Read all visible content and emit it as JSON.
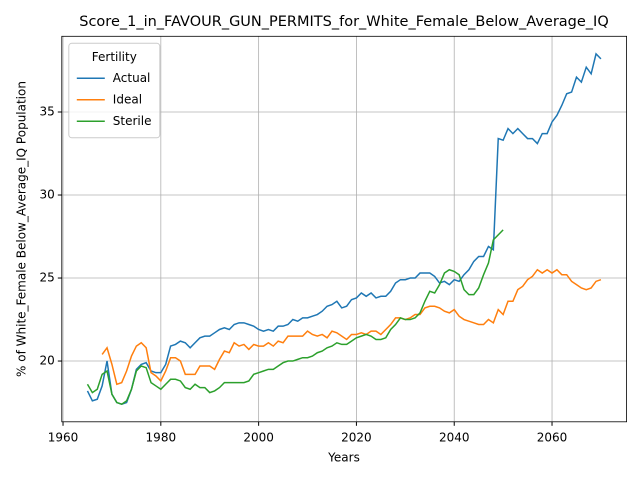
{
  "chart_data": {
    "type": "line",
    "title": "Score_1_in_FAVOUR_GUN_PERMITS_for_White_Female_Below_Average_IQ",
    "x_label": "Years",
    "y_label": "% of White_Female Below_Average_IQ Population",
    "legend_title": "Fertility",
    "legend_position": "upper left",
    "grid": true,
    "x": [
      1965,
      1966,
      1967,
      1968,
      1969,
      1970,
      1971,
      1972,
      1973,
      1974,
      1975,
      1976,
      1977,
      1978,
      1979,
      1980,
      1981,
      1982,
      1983,
      1984,
      1985,
      1986,
      1987,
      1988,
      1989,
      1990,
      1991,
      1992,
      1993,
      1994,
      1995,
      1996,
      1997,
      1998,
      1999,
      2000,
      2001,
      2002,
      2003,
      2004,
      2005,
      2006,
      2007,
      2008,
      2009,
      2010,
      2011,
      2012,
      2013,
      2014,
      2015,
      2016,
      2017,
      2018,
      2019,
      2020,
      2021,
      2022,
      2023,
      2024,
      2025,
      2026,
      2027,
      2028,
      2029,
      2030,
      2031,
      2032,
      2033,
      2034,
      2035,
      2036,
      2037,
      2038,
      2039,
      2040,
      2041,
      2042,
      2043,
      2044,
      2045,
      2046,
      2047,
      2048,
      2049,
      2050,
      2051,
      2052,
      2053,
      2054,
      2055,
      2056,
      2057,
      2058,
      2059,
      2060,
      2061,
      2062,
      2063,
      2064,
      2065,
      2066,
      2067,
      2068,
      2069,
      2070
    ],
    "series": [
      {
        "name": "Actual",
        "color": "#1f77b4",
        "values": [
          18.2,
          17.6,
          17.7,
          18.5,
          20.0,
          18.0,
          17.5,
          17.4,
          17.5,
          18.3,
          19.5,
          19.8,
          19.9,
          19.4,
          19.3,
          19.3,
          19.8,
          20.9,
          21.0,
          21.2,
          21.1,
          20.8,
          21.1,
          21.4,
          21.5,
          21.5,
          21.7,
          21.9,
          22.0,
          21.9,
          22.2,
          22.3,
          22.3,
          22.2,
          22.1,
          21.9,
          21.8,
          21.9,
          21.8,
          22.1,
          22.1,
          22.2,
          22.5,
          22.4,
          22.6,
          22.6,
          22.7,
          22.8,
          23.0,
          23.3,
          23.4,
          23.6,
          23.2,
          23.3,
          23.7,
          23.8,
          24.1,
          23.9,
          24.1,
          23.8,
          23.9,
          23.9,
          24.2,
          24.7,
          24.9,
          24.9,
          25.0,
          25.0,
          25.3,
          25.3,
          25.3,
          25.1,
          24.7,
          24.8,
          24.6,
          24.9,
          24.8,
          25.2,
          25.5,
          26.0,
          26.3,
          26.3,
          26.9,
          26.7,
          33.4,
          33.3,
          34.0,
          33.7,
          34.0,
          33.7,
          33.4,
          33.4,
          33.1,
          33.7,
          33.7,
          34.4,
          34.8,
          35.4,
          36.1,
          36.2,
          37.1,
          36.8,
          37.7,
          37.3,
          38.5,
          38.2
        ]
      },
      {
        "name": "Ideal",
        "color": "#ff7f0e",
        "values": [
          null,
          null,
          null,
          20.4,
          20.8,
          19.8,
          18.6,
          18.7,
          19.4,
          20.3,
          20.9,
          21.1,
          20.8,
          19.3,
          19.1,
          18.8,
          19.4,
          20.2,
          20.2,
          20.0,
          19.2,
          19.2,
          19.2,
          19.7,
          19.7,
          19.7,
          19.5,
          20.1,
          20.6,
          20.5,
          21.1,
          20.9,
          21.0,
          20.7,
          21.0,
          20.9,
          20.9,
          21.1,
          20.9,
          21.2,
          21.1,
          21.5,
          21.5,
          21.5,
          21.5,
          21.8,
          21.6,
          21.5,
          21.6,
          21.4,
          21.8,
          21.7,
          21.5,
          21.3,
          21.6,
          21.6,
          21.7,
          21.6,
          21.8,
          21.8,
          21.6,
          21.9,
          22.2,
          22.6,
          22.6,
          22.5,
          22.6,
          22.8,
          22.8,
          23.2,
          23.3,
          23.3,
          23.2,
          23.0,
          22.9,
          23.1,
          22.7,
          22.5,
          22.4,
          22.3,
          22.2,
          22.2,
          22.5,
          22.3,
          23.1,
          22.8,
          23.6,
          23.6,
          24.3,
          24.5,
          24.9,
          25.1,
          25.5,
          25.3,
          25.5,
          25.3,
          25.5,
          25.2,
          25.2,
          24.8,
          24.6,
          24.4,
          24.3,
          24.4,
          24.8,
          24.9
        ]
      },
      {
        "name": "Sterile",
        "color": "#2ca02c",
        "values": [
          18.6,
          18.1,
          18.3,
          19.2,
          19.4,
          18.0,
          17.5,
          17.4,
          17.6,
          18.3,
          19.4,
          19.7,
          19.6,
          18.7,
          18.5,
          18.3,
          18.6,
          18.9,
          18.9,
          18.8,
          18.4,
          18.3,
          18.6,
          18.4,
          18.4,
          18.1,
          18.2,
          18.4,
          18.7,
          18.7,
          18.7,
          18.7,
          18.7,
          18.8,
          19.2,
          19.3,
          19.4,
          19.5,
          19.5,
          19.7,
          19.9,
          20.0,
          20.0,
          20.1,
          20.2,
          20.2,
          20.3,
          20.5,
          20.6,
          20.8,
          20.9,
          21.1,
          21.0,
          21.0,
          21.2,
          21.4,
          21.5,
          21.6,
          21.5,
          21.3,
          21.3,
          21.4,
          21.9,
          22.2,
          22.6,
          22.5,
          22.5,
          22.6,
          22.9,
          23.6,
          24.2,
          24.1,
          24.6,
          25.3,
          25.5,
          25.4,
          25.2,
          24.3,
          24.0,
          24.0,
          24.4,
          25.2,
          25.9,
          27.3,
          27.6,
          27.9,
          null,
          null,
          null,
          null,
          null,
          null,
          null,
          null,
          null,
          null,
          null,
          null,
          null,
          null,
          null,
          null,
          null,
          null,
          null,
          null
        ]
      }
    ],
    "xlim": [
      1959.75,
      2075.25
    ],
    "xticks": [
      1960,
      1980,
      2000,
      2020,
      2040,
      2060
    ],
    "ylim": [
      16.34,
      39.56
    ],
    "yticks": [
      20,
      25,
      30,
      35
    ]
  }
}
